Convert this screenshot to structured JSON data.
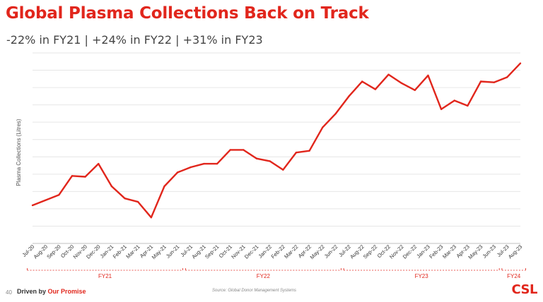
{
  "slide": {
    "title": "Global Plasma Collections Back on Track",
    "subtitle": "-22% in FY21  |  +24% in FY22  |  +31% in FY23",
    "page_number": "40",
    "tagline_part1": "Driven by ",
    "tagline_part2": "Our Promise",
    "source": "Source: Global Donor Management Systems",
    "logo": "CSL"
  },
  "colors": {
    "accent": "#e1261c",
    "grid": "#e6e6e6"
  },
  "chart_data": {
    "type": "line",
    "title": "",
    "xlabel": "",
    "ylabel": "Plasma Collections (Litres)",
    "grid": true,
    "ylim": [
      0,
      11
    ],
    "categories": [
      "Jul-20",
      "Aug-20",
      "Sep-20",
      "Oct-20",
      "Nov-20",
      "Dec-20",
      "Jan-21",
      "Feb-21",
      "Mar-21",
      "Apr-21",
      "May-21",
      "Jun-21",
      "Jul-21",
      "Aug-21",
      "Sep-21",
      "Oct-21",
      "Nov-21",
      "Dec-21",
      "Jan-22",
      "Feb-22",
      "Mar-22",
      "Apr-22",
      "May-22",
      "Jun-22",
      "Jul-22",
      "Aug-22",
      "Sep-22",
      "Oct-22",
      "Nov-22",
      "Dec-22",
      "Jan-23",
      "Feb-23",
      "Mar-23",
      "Apr-23",
      "May-23",
      "Jun-23",
      "Jul-23",
      "Aug-23"
    ],
    "series": [
      {
        "values": [
          2.2,
          2.5,
          2.8,
          3.9,
          3.85,
          4.6,
          3.3,
          2.6,
          2.4,
          1.5,
          3.3,
          4.1,
          4.4,
          4.6,
          4.6,
          5.4,
          5.4,
          4.9,
          4.75,
          4.25,
          5.25,
          5.35,
          6.7,
          7.5,
          8.5,
          9.35,
          8.9,
          9.75,
          9.25,
          8.85,
          9.7,
          7.75,
          8.25,
          7.95,
          9.35,
          9.3,
          9.6,
          10.4
        ]
      }
    ],
    "fiscal_years": [
      {
        "label": "FY21",
        "start": "Jul-20",
        "end": "Jun-21"
      },
      {
        "label": "FY22",
        "start": "Jul-21",
        "end": "Jun-22"
      },
      {
        "label": "FY23",
        "start": "Jul-22",
        "end": "Jun-23"
      },
      {
        "label": "FY24",
        "start": "Jul-23",
        "end": "Aug-23"
      }
    ]
  }
}
